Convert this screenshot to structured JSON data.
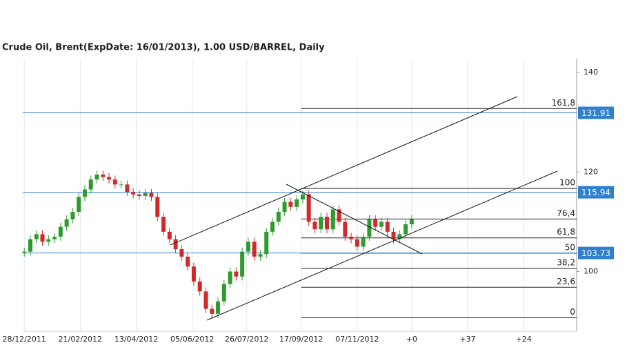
{
  "chart_data": {
    "type": "candlestick",
    "title": "Crude Oil, Brent(ExpDate: 16/01/2013), 1.00 USD/BARREL, Daily",
    "x": [
      0,
      4,
      8,
      12,
      16,
      20,
      24,
      28,
      32,
      36,
      40,
      44,
      48,
      52,
      56,
      60,
      64,
      68,
      72,
      76,
      80,
      84,
      88,
      92,
      96,
      100,
      104,
      108,
      112,
      116,
      120,
      124,
      128,
      132,
      136,
      140,
      144,
      148,
      152,
      156,
      160,
      164,
      168,
      172,
      176,
      180,
      184,
      188,
      192,
      196,
      200,
      204,
      208,
      212,
      216,
      220,
      224,
      228,
      232,
      236,
      240,
      244,
      248,
      252,
      256
    ],
    "open": [
      103.8,
      104,
      106.5,
      107.5,
      106,
      106.5,
      107,
      109,
      110.5,
      112,
      115,
      116.5,
      118.5,
      119.5,
      119,
      118.5,
      117.5,
      117.5,
      116,
      115.5,
      115.2,
      115.8,
      115,
      111,
      108,
      106.5,
      104.5,
      103,
      101,
      98,
      96,
      92.5,
      91.5,
      94,
      97.5,
      100,
      99,
      104,
      106,
      103,
      103.5,
      108,
      110,
      112,
      114,
      113,
      114.5,
      115.5,
      110,
      108.5,
      111,
      108.5,
      112.5,
      110,
      107,
      106.5,
      105,
      107,
      110.5,
      109,
      110,
      108,
      106.5,
      107.5,
      109.5
    ],
    "high": [
      104.8,
      107.3,
      108.3,
      108.3,
      107.3,
      107.8,
      109.8,
      111.3,
      112.8,
      115.8,
      117.3,
      119.3,
      120.3,
      120.3,
      119.8,
      119.3,
      118.3,
      118.3,
      116.8,
      116.3,
      116.6,
      116.6,
      115.8,
      111.8,
      108.8,
      107.3,
      105.3,
      103.8,
      101.8,
      98.8,
      96.8,
      93.3,
      94.8,
      98.3,
      100.8,
      100.8,
      104.8,
      106.8,
      106.8,
      104.3,
      108.8,
      110.8,
      112.8,
      114.8,
      114.8,
      115.3,
      116.3,
      116.3,
      110.8,
      111.8,
      111.8,
      113.3,
      113.3,
      110.8,
      107.8,
      107.3,
      107.8,
      111.3,
      111.3,
      110.8,
      110.8,
      108.8,
      108.3,
      110.3,
      111.3
    ],
    "low": [
      103,
      103.2,
      105.7,
      105.2,
      105.2,
      105.7,
      106.2,
      108.2,
      109.7,
      111.2,
      114.2,
      115.7,
      117.7,
      118.2,
      117.7,
      116.7,
      116.7,
      115.2,
      114.7,
      114.4,
      114.4,
      114.2,
      110.2,
      107.2,
      105.7,
      103.7,
      102.2,
      100.2,
      97.2,
      95.2,
      91.7,
      90.7,
      90.7,
      93.2,
      96.7,
      98.2,
      98.2,
      103.2,
      102.2,
      102.2,
      102.7,
      107.2,
      109.2,
      111.2,
      112.2,
      112.2,
      113.7,
      109.2,
      107.7,
      107.7,
      107.7,
      107.7,
      109.2,
      106.2,
      105.7,
      104.2,
      104.2,
      106.2,
      108.2,
      108.2,
      107.2,
      105.7,
      105.7,
      106.7,
      108.7
    ],
    "close": [
      104,
      106.5,
      107.5,
      106,
      106.5,
      107,
      109,
      110.5,
      112,
      115,
      116.5,
      118.5,
      119.5,
      119,
      118.5,
      117.5,
      117.5,
      116,
      115.5,
      115.2,
      115.8,
      115,
      111,
      108,
      106.5,
      104.5,
      103,
      101,
      98,
      96,
      92.5,
      91.5,
      94,
      97.5,
      100,
      99,
      104,
      106,
      103,
      103.5,
      108,
      110,
      112,
      114,
      113,
      114.5,
      115.5,
      110,
      108.5,
      111,
      108.5,
      112.5,
      110,
      107,
      106.5,
      105,
      107,
      110.5,
      109,
      110,
      108,
      106.5,
      107.5,
      109.5,
      110.5
    ],
    "up_color": "#2f9a2f",
    "down_color": "#d02a2a",
    "xlim": [
      -1,
      365
    ],
    "xticks": [
      {
        "value": 0,
        "label": "28/12/2011"
      },
      {
        "value": 37,
        "label": "21/02/2012"
      },
      {
        "value": 74,
        "label": "13/04/2012"
      },
      {
        "value": 111,
        "label": "05/06/2012"
      },
      {
        "value": 147,
        "label": "26/07/2012"
      },
      {
        "value": 183,
        "label": "17/09/2012"
      },
      {
        "value": 220,
        "label": "07/11/2012"
      },
      {
        "value": 256,
        "label": "+0"
      },
      {
        "value": 293,
        "label": "+37"
      },
      {
        "value": 330,
        "label": "+24"
      }
    ],
    "ylim": [
      88,
      142.8
    ],
    "yticks": [
      100,
      120,
      140
    ],
    "grid": true,
    "price_lines": [
      131.91,
      115.94,
      103.73
    ],
    "price_line_color": "#2e7fcf",
    "fibonacci": {
      "labels": [
        "0",
        "23,6",
        "38,2",
        "50",
        "61,8",
        "76,4",
        "100",
        "161,8"
      ],
      "prices": [
        90.7,
        96.84,
        100.63,
        103.7,
        106.77,
        110.56,
        116.7,
        132.77
      ],
      "start": 183
    }
  }
}
